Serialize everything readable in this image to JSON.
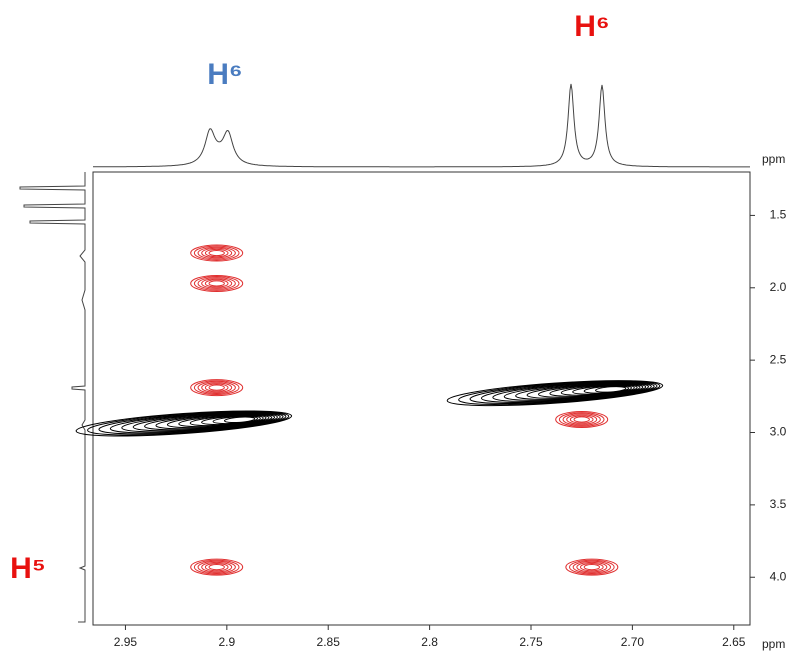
{
  "chart_data": {
    "type": "contour",
    "xlabel": "ppm",
    "ylabel": "ppm",
    "xlim": [
      2.966,
      2.642
    ],
    "ylim": [
      1.2,
      4.33
    ],
    "xticks": [
      2.95,
      2.9,
      2.85,
      2.8,
      2.75,
      {
        "value": 2.7,
        "label": "2.70"
      },
      2.65
    ],
    "yticks": [
      1.5,
      {
        "value": 2,
        "label": "2.0"
      },
      2.5,
      {
        "value": 3,
        "label": "3.0"
      },
      3.5,
      {
        "value": 4,
        "label": "4.0"
      }
    ],
    "series": [
      {
        "color": "#e03030",
        "shape": "round",
        "x": [
          2.905,
          2.905,
          2.905,
          2.905,
          2.725,
          2.72
        ],
        "y": [
          1.76,
          1.97,
          2.69,
          3.93,
          2.91,
          3.93
        ]
      },
      {
        "color": "#000000",
        "shape": "elongated",
        "x": [
          2.899,
          2.716
        ],
        "y": [
          2.91,
          2.7
        ]
      }
    ],
    "annotations": [
      {
        "text": "H⁶",
        "color": "#4a7cc0"
      },
      {
        "text": "H⁶",
        "color": "#e8110f"
      },
      {
        "text": "H⁵",
        "color": "#e8110f"
      }
    ]
  }
}
